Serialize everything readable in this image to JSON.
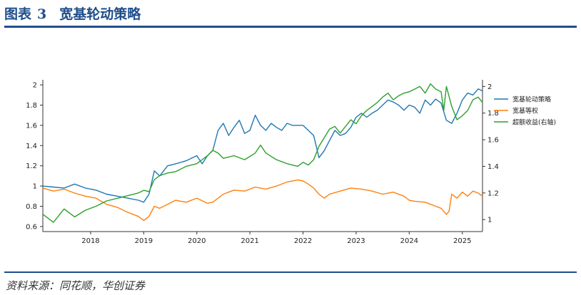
{
  "header": {
    "label": "图表",
    "number": "3",
    "title": "宽基轮动策略"
  },
  "source": "资料来源：同花顺，华创证券",
  "chart_data": {
    "type": "line",
    "title": "宽基轮动策略",
    "x_range": [
      2017.1,
      2025.38
    ],
    "x_ticks": [
      "2018",
      "2019",
      "2020",
      "2021",
      "2022",
      "2023",
      "2024",
      "2025"
    ],
    "left_axis": {
      "ylim": [
        0.55,
        2.05
      ],
      "ticks": [
        "0.6",
        "0.8",
        "1",
        "1.2",
        "1.4",
        "1.6",
        "1.8",
        "2"
      ]
    },
    "right_axis": {
      "ylim": [
        0.91,
        2.05
      ],
      "ticks": [
        "1",
        "1.2",
        "1.4",
        "1.6",
        "1.8",
        "2"
      ]
    },
    "legend_position": "right",
    "series": [
      {
        "name": "宽基轮动策略",
        "axis": "left",
        "color": "#1f77b4",
        "x": [
          2017.1,
          2017.3,
          2017.5,
          2017.7,
          2017.9,
          2018.1,
          2018.3,
          2018.5,
          2018.7,
          2018.9,
          2019.0,
          2019.1,
          2019.2,
          2019.3,
          2019.45,
          2019.6,
          2019.8,
          2020.0,
          2020.1,
          2020.2,
          2020.3,
          2020.4,
          2020.5,
          2020.6,
          2020.7,
          2020.8,
          2020.9,
          2021.0,
          2021.1,
          2021.2,
          2021.3,
          2021.4,
          2021.5,
          2021.6,
          2021.7,
          2021.8,
          2021.9,
          2022.0,
          2022.1,
          2022.2,
          2022.3,
          2022.4,
          2022.5,
          2022.6,
          2022.7,
          2022.8,
          2022.9,
          2023.0,
          2023.1,
          2023.2,
          2023.3,
          2023.4,
          2023.5,
          2023.6,
          2023.7,
          2023.8,
          2023.9,
          2024.0,
          2024.1,
          2024.2,
          2024.3,
          2024.4,
          2024.5,
          2024.6,
          2024.7,
          2024.8,
          2024.9,
          2025.0,
          2025.1,
          2025.2,
          2025.3,
          2025.38
        ],
        "values": [
          1.0,
          0.99,
          0.98,
          1.02,
          0.98,
          0.96,
          0.92,
          0.9,
          0.88,
          0.86,
          0.84,
          0.92,
          1.15,
          1.1,
          1.2,
          1.22,
          1.25,
          1.3,
          1.22,
          1.3,
          1.35,
          1.55,
          1.62,
          1.5,
          1.58,
          1.65,
          1.52,
          1.55,
          1.7,
          1.6,
          1.55,
          1.62,
          1.58,
          1.55,
          1.62,
          1.6,
          1.6,
          1.6,
          1.55,
          1.5,
          1.28,
          1.35,
          1.45,
          1.55,
          1.5,
          1.52,
          1.58,
          1.68,
          1.72,
          1.68,
          1.72,
          1.75,
          1.8,
          1.85,
          1.83,
          1.8,
          1.75,
          1.8,
          1.78,
          1.72,
          1.85,
          1.8,
          1.86,
          1.82,
          1.65,
          1.62,
          1.72,
          1.85,
          1.92,
          1.9,
          1.96,
          1.94
        ]
      },
      {
        "name": "宽基等权",
        "axis": "left",
        "color": "#ff7f0e",
        "x": [
          2017.1,
          2017.3,
          2017.5,
          2017.7,
          2017.9,
          2018.1,
          2018.3,
          2018.5,
          2018.7,
          2018.9,
          2019.0,
          2019.1,
          2019.2,
          2019.3,
          2019.45,
          2019.6,
          2019.8,
          2020.0,
          2020.2,
          2020.3,
          2020.5,
          2020.7,
          2020.9,
          2021.1,
          2021.3,
          2021.5,
          2021.7,
          2021.9,
          2022.0,
          2022.1,
          2022.2,
          2022.3,
          2022.4,
          2022.5,
          2022.7,
          2022.9,
          2023.1,
          2023.3,
          2023.5,
          2023.7,
          2023.9,
          2024.0,
          2024.1,
          2024.3,
          2024.5,
          2024.6,
          2024.7,
          2024.75,
          2024.8,
          2024.9,
          2025.0,
          2025.1,
          2025.2,
          2025.3,
          2025.38
        ],
        "values": [
          0.98,
          0.95,
          0.97,
          0.93,
          0.9,
          0.88,
          0.82,
          0.79,
          0.74,
          0.7,
          0.66,
          0.7,
          0.8,
          0.78,
          0.82,
          0.86,
          0.84,
          0.88,
          0.83,
          0.84,
          0.92,
          0.96,
          0.95,
          0.99,
          0.97,
          1.0,
          1.04,
          1.06,
          1.05,
          1.02,
          0.98,
          0.92,
          0.88,
          0.92,
          0.95,
          0.98,
          0.97,
          0.95,
          0.92,
          0.94,
          0.9,
          0.86,
          0.85,
          0.84,
          0.8,
          0.78,
          0.72,
          0.75,
          0.92,
          0.88,
          0.94,
          0.9,
          0.95,
          0.93,
          0.9
        ]
      },
      {
        "name": "超额收益(右轴)",
        "axis": "right",
        "color": "#2ca02c",
        "x": [
          2017.1,
          2017.3,
          2017.5,
          2017.7,
          2017.9,
          2018.1,
          2018.3,
          2018.5,
          2018.7,
          2018.9,
          2019.0,
          2019.1,
          2019.2,
          2019.3,
          2019.45,
          2019.6,
          2019.8,
          2020.0,
          2020.2,
          2020.3,
          2020.4,
          2020.5,
          2020.7,
          2020.9,
          2021.1,
          2021.2,
          2021.3,
          2021.5,
          2021.7,
          2021.9,
          2022.0,
          2022.1,
          2022.2,
          2022.3,
          2022.5,
          2022.6,
          2022.7,
          2022.8,
          2022.9,
          2023.0,
          2023.1,
          2023.2,
          2023.3,
          2023.4,
          2023.5,
          2023.6,
          2023.7,
          2023.8,
          2023.9,
          2024.0,
          2024.1,
          2024.2,
          2024.3,
          2024.4,
          2024.5,
          2024.6,
          2024.65,
          2024.7,
          2024.8,
          2024.9,
          2025.0,
          2025.1,
          2025.2,
          2025.3,
          2025.38
        ],
        "values": [
          1.04,
          0.98,
          1.08,
          1.02,
          1.07,
          1.1,
          1.14,
          1.16,
          1.18,
          1.2,
          1.22,
          1.21,
          1.3,
          1.33,
          1.35,
          1.36,
          1.4,
          1.42,
          1.48,
          1.52,
          1.5,
          1.46,
          1.48,
          1.45,
          1.5,
          1.56,
          1.5,
          1.45,
          1.42,
          1.4,
          1.43,
          1.41,
          1.45,
          1.55,
          1.68,
          1.7,
          1.65,
          1.7,
          1.75,
          1.72,
          1.78,
          1.82,
          1.85,
          1.88,
          1.92,
          1.95,
          1.9,
          1.93,
          1.95,
          1.96,
          1.98,
          2.0,
          1.95,
          2.02,
          1.98,
          1.96,
          1.82,
          2.0,
          1.85,
          1.75,
          1.78,
          1.82,
          1.9,
          1.92,
          1.88
        ]
      }
    ]
  }
}
